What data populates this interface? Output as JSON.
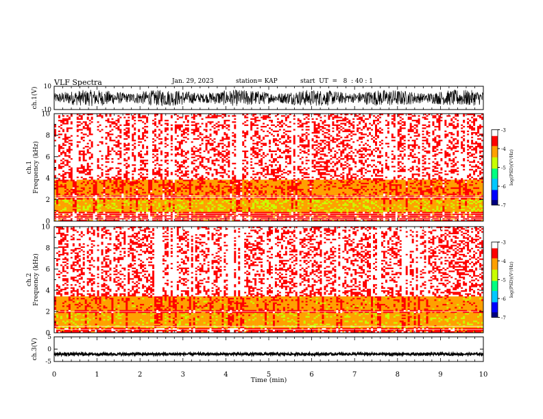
{
  "header": {
    "title": "VLF Spectra",
    "date": "Jan. 29, 2023",
    "station": "station= KAP",
    "start": "start  UT  =   8  : 40 : 1"
  },
  "chart_data": [
    {
      "type": "line",
      "name": "ch1-waveform",
      "ylabel": "ch.1(V)",
      "ylim": [
        -10,
        10
      ],
      "yticks": [
        "10",
        "-10"
      ],
      "xlim": [
        0,
        10
      ],
      "series": [
        {
          "description": "dense broadband waveform filling most of the range",
          "amplitude_approx": 7
        }
      ]
    },
    {
      "type": "heatmap",
      "name": "ch1-spectrogram",
      "ylabel": "ch.1\nFrequency (kHz)",
      "ylim": [
        0,
        10
      ],
      "yticks": [
        "0",
        "2",
        "4",
        "6",
        "8",
        "10"
      ],
      "xlim": [
        0,
        10
      ],
      "colorbar": {
        "label": "log(PSD)(V²/Hz)",
        "range": [
          -7,
          -3
        ],
        "ticks": [
          "-3",
          "-4",
          "-5",
          "-6",
          "-7"
        ]
      },
      "bands": [
        {
          "from_khz": 0,
          "to_khz": 0.8,
          "level": -3.6
        },
        {
          "from_khz": 0.8,
          "to_khz": 2.0,
          "level": -4.3
        },
        {
          "from_khz": 2.0,
          "to_khz": 2.5,
          "level": -3.8
        },
        {
          "from_khz": 2.5,
          "to_khz": 3.8,
          "level": -4.0
        },
        {
          "from_khz": 3.8,
          "to_khz": 10,
          "level": -3.3
        }
      ],
      "lines_khz": [
        0.15,
        0.3,
        0.5,
        0.7,
        2.2,
        2.35
      ]
    },
    {
      "type": "heatmap",
      "name": "ch2-spectrogram",
      "ylabel": "ch.2\nFrequency (kHz)",
      "ylim": [
        0,
        10
      ],
      "yticks": [
        "0",
        "2",
        "4",
        "6",
        "8",
        "10"
      ],
      "xlim": [
        0,
        10
      ],
      "colorbar": {
        "label": "log(PSD)(V²/Hz)",
        "range": [
          -7,
          -3
        ],
        "ticks": [
          "-3",
          "-4",
          "-5",
          "-6",
          "-7"
        ]
      },
      "bands": [
        {
          "from_khz": 0,
          "to_khz": 0.5,
          "level": -3.6
        },
        {
          "from_khz": 0.5,
          "to_khz": 1.8,
          "level": -4.2
        },
        {
          "from_khz": 1.8,
          "to_khz": 2.2,
          "level": -3.7
        },
        {
          "from_khz": 2.2,
          "to_khz": 3.4,
          "level": -4.1
        },
        {
          "from_khz": 3.4,
          "to_khz": 10,
          "level": -3.3
        }
      ],
      "lines_khz": [
        0.3,
        0.6,
        2.0
      ]
    },
    {
      "type": "line",
      "name": "ch3-waveform",
      "ylabel": "ch.3(V)",
      "ylim": [
        -5,
        5
      ],
      "yticks": [
        "5",
        "0",
        "-5"
      ],
      "xlim": [
        0,
        10
      ],
      "series": [
        {
          "description": "narrow dense trace around -2 V",
          "center": -2,
          "amplitude_approx": 0.5
        }
      ]
    }
  ],
  "xaxis": {
    "label": "Time (min)",
    "ticks": [
      "0",
      "1",
      "2",
      "3",
      "4",
      "5",
      "6",
      "7",
      "8",
      "9",
      "10"
    ]
  },
  "colors": {
    "axes": "#000000",
    "colormap": [
      "#000080",
      "#0000ff",
      "#00c8ff",
      "#00ff80",
      "#c8ff00",
      "#ffa000",
      "#ff0000",
      "#ffffff"
    ]
  }
}
